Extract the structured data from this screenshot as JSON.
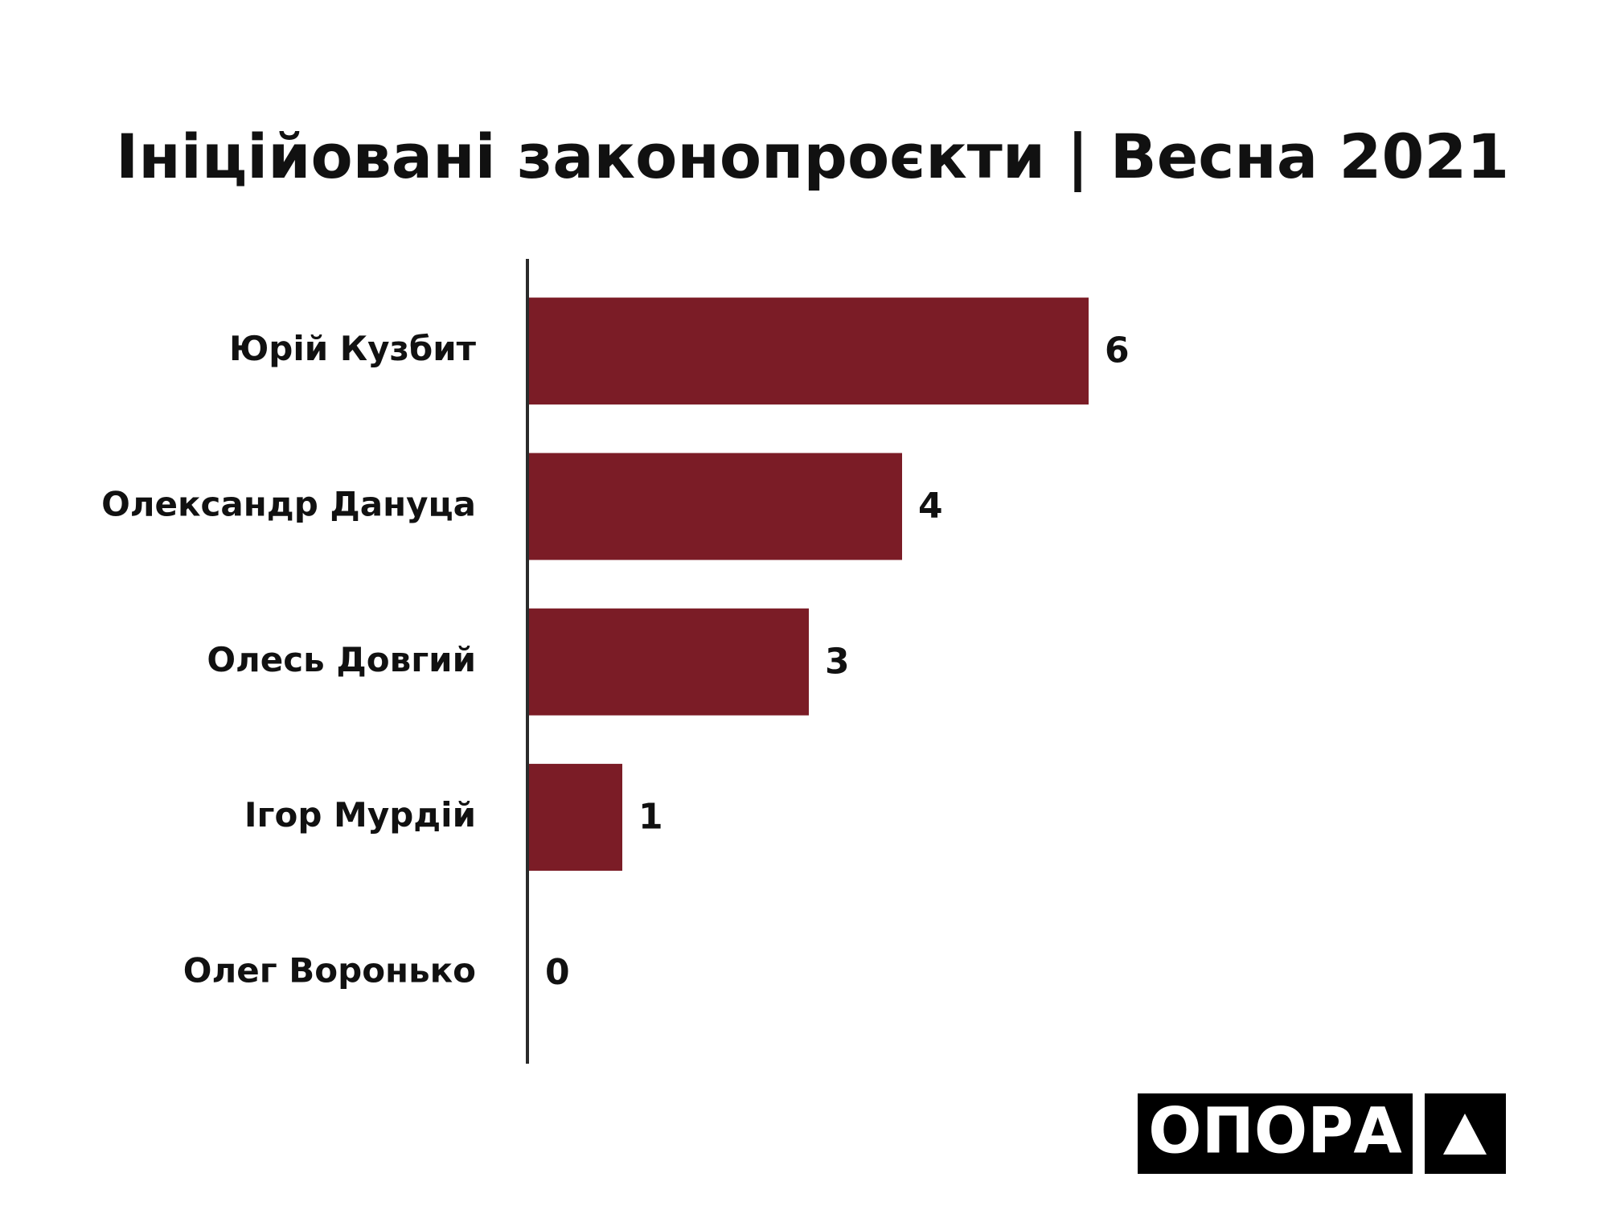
{
  "chart_data": {
    "type": "bar",
    "orientation": "horizontal",
    "title": "Ініційовані законопроєкти | Весна 2021",
    "categories": [
      "Юрій Кузбит",
      "Олександр Дануца",
      "Олесь Довгий",
      "Ігор Мурдій",
      "Олег Воронько"
    ],
    "values": [
      6,
      4,
      3,
      1,
      0
    ],
    "color": "#7b1c26",
    "xlim": [
      0,
      10
    ]
  },
  "logo": {
    "text": "ОПОРА"
  }
}
